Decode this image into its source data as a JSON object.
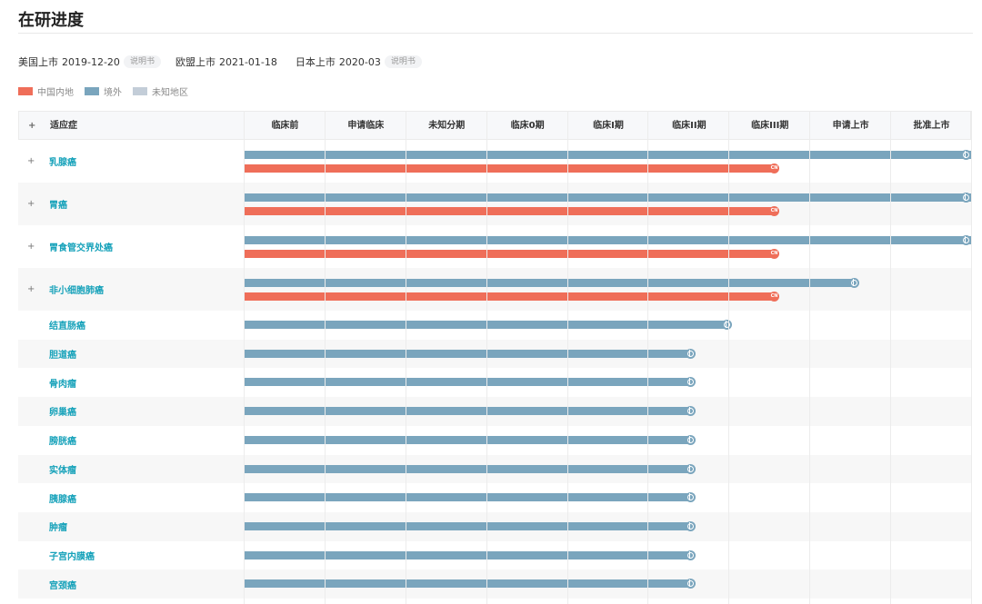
{
  "page_title": "在研进度",
  "markets": [
    {
      "label": "美国上市",
      "date": "2019-12-20",
      "badge": "说明书"
    },
    {
      "label": "欧盟上市",
      "date": "2021-01-18",
      "badge": ""
    },
    {
      "label": "日本上市",
      "date": "2020-03",
      "badge": "说明书"
    }
  ],
  "legend": [
    {
      "label": "中国内地",
      "color": "#ef6e59"
    },
    {
      "label": "境外",
      "color": "#7aa5bd"
    },
    {
      "label": "未知地区",
      "color": "#c3cdd8"
    }
  ],
  "table": {
    "expand_symbol": "+",
    "first_column": "适应症",
    "phases": [
      "临床前",
      "申请临床",
      "未知分期",
      "临床0期",
      "临床I期",
      "临床II期",
      "临床III期",
      "申请上市",
      "批准上市"
    ],
    "cn_marker_text": "CN",
    "rows": [
      {
        "name": "乳腺癌",
        "expandable": true,
        "bars": [
          {
            "region": "overseas",
            "progress": 1.0
          },
          {
            "region": "cn",
            "progress": 0.73
          }
        ]
      },
      {
        "name": "胃癌",
        "expandable": true,
        "bars": [
          {
            "region": "overseas",
            "progress": 1.0
          },
          {
            "region": "cn",
            "progress": 0.73
          }
        ]
      },
      {
        "name": "胃食管交界处癌",
        "expandable": true,
        "bars": [
          {
            "region": "overseas",
            "progress": 1.0
          },
          {
            "region": "cn",
            "progress": 0.73
          }
        ]
      },
      {
        "name": "非小细胞肺癌",
        "expandable": true,
        "bars": [
          {
            "region": "overseas",
            "progress": 0.84
          },
          {
            "region": "cn",
            "progress": 0.73
          }
        ]
      },
      {
        "name": "结直肠癌",
        "expandable": false,
        "bars": [
          {
            "region": "overseas",
            "progress": 0.665
          }
        ]
      },
      {
        "name": "胆道癌",
        "expandable": false,
        "bars": [
          {
            "region": "overseas",
            "progress": 0.615
          }
        ]
      },
      {
        "name": "骨肉瘤",
        "expandable": false,
        "bars": [
          {
            "region": "overseas",
            "progress": 0.615
          }
        ]
      },
      {
        "name": "卵巢癌",
        "expandable": false,
        "bars": [
          {
            "region": "overseas",
            "progress": 0.615
          }
        ]
      },
      {
        "name": "膀胱癌",
        "expandable": false,
        "bars": [
          {
            "region": "overseas",
            "progress": 0.615
          }
        ]
      },
      {
        "name": "实体瘤",
        "expandable": false,
        "bars": [
          {
            "region": "overseas",
            "progress": 0.615
          }
        ]
      },
      {
        "name": "胰腺癌",
        "expandable": false,
        "bars": [
          {
            "region": "overseas",
            "progress": 0.615
          }
        ]
      },
      {
        "name": "肿瘤",
        "expandable": false,
        "bars": [
          {
            "region": "overseas",
            "progress": 0.615
          }
        ]
      },
      {
        "name": "子宫内膜癌",
        "expandable": false,
        "bars": [
          {
            "region": "overseas",
            "progress": 0.615
          }
        ]
      },
      {
        "name": "宫颈癌",
        "expandable": false,
        "bars": [
          {
            "region": "overseas",
            "progress": 0.615
          }
        ]
      }
    ]
  }
}
